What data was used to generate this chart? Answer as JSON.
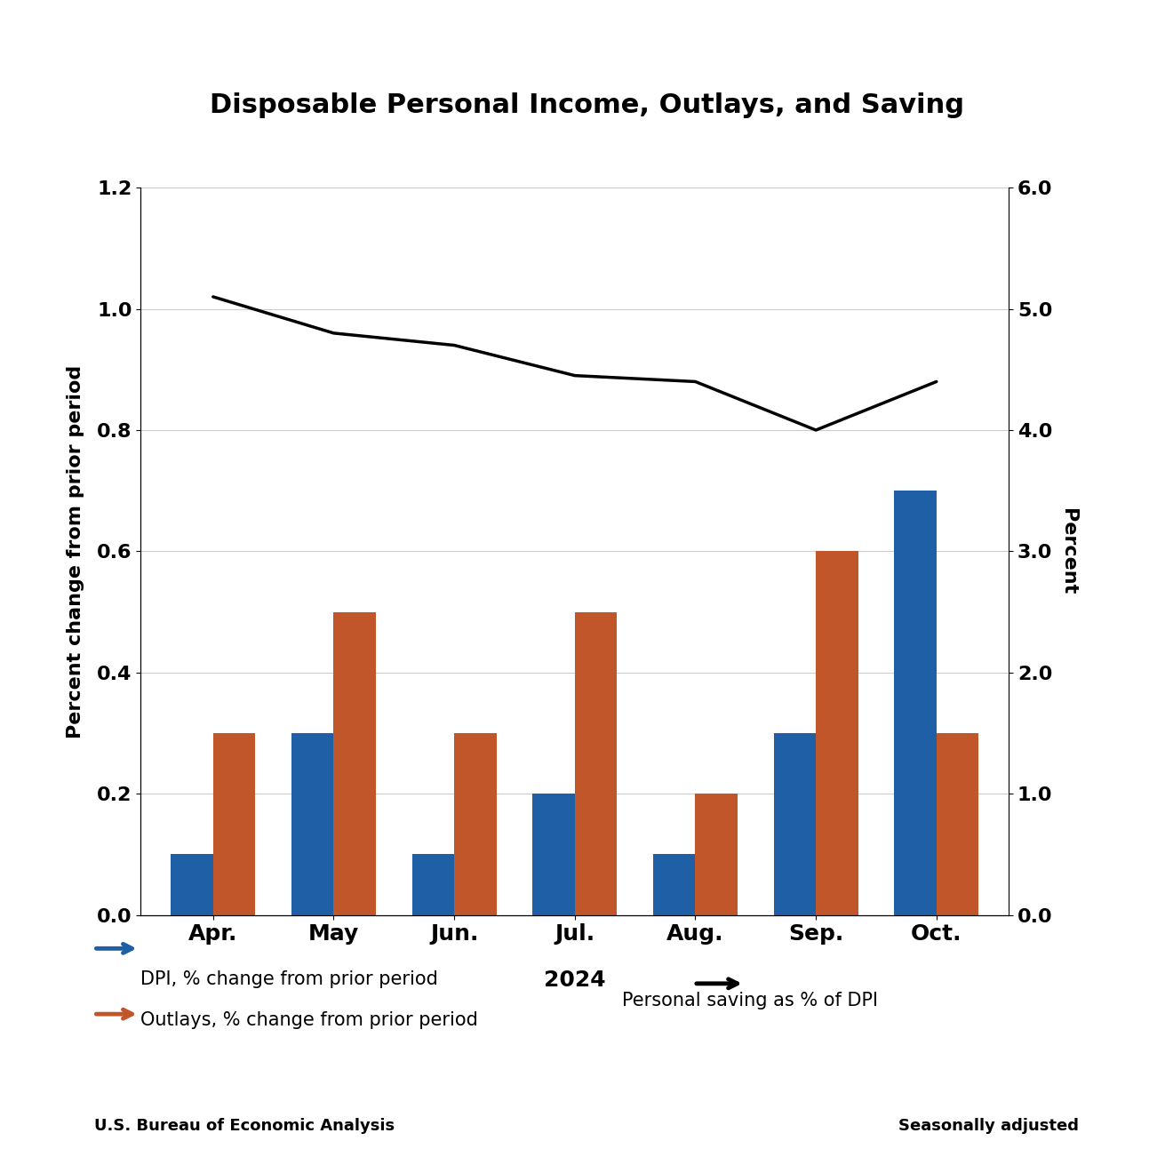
{
  "title": "Disposable Personal Income, Outlays, and Saving",
  "months": [
    "Apr.",
    "May",
    "Jun.",
    "Jul.",
    "Aug.",
    "Sep.",
    "Oct."
  ],
  "year_label": "2024",
  "dpi_values": [
    0.1,
    0.3,
    0.1,
    0.2,
    0.1,
    0.3,
    0.7
  ],
  "outlays_values": [
    0.3,
    0.5,
    0.3,
    0.5,
    0.2,
    0.6,
    0.3
  ],
  "saving_values": [
    5.1,
    4.8,
    4.7,
    4.45,
    4.4,
    4.0,
    4.4
  ],
  "dpi_color": "#1f5fa6",
  "outlays_color": "#c0562a",
  "saving_color": "#000000",
  "left_ylim": [
    0.0,
    1.2
  ],
  "right_ylim": [
    0.0,
    6.0
  ],
  "left_yticks": [
    0.0,
    0.2,
    0.4,
    0.6,
    0.8,
    1.0,
    1.2
  ],
  "right_yticks": [
    0.0,
    1.0,
    2.0,
    3.0,
    4.0,
    5.0,
    6.0
  ],
  "ylabel_left": "Percent change from prior period",
  "ylabel_right": "Percent",
  "legend_dpi": "DPI, % change from prior period",
  "legend_outlays": "Outlays, % change from prior period",
  "legend_saving": "Personal saving as % of DPI",
  "footer_left": "U.S. Bureau of Economic Analysis",
  "footer_right": "Seasonally adjusted",
  "grid_color": "#cccccc",
  "background_color": "#ffffff",
  "title_fontsize": 22,
  "axis_label_fontsize": 16,
  "tick_fontsize": 16,
  "legend_fontsize": 15,
  "footer_fontsize": 13
}
